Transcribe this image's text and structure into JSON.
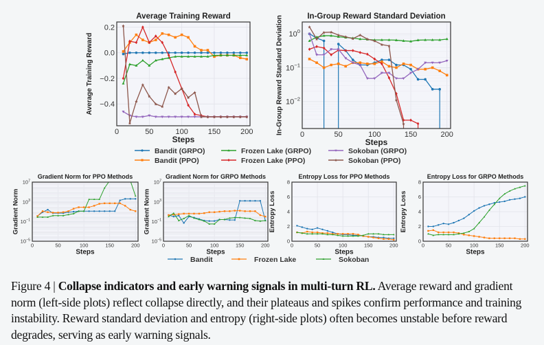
{
  "colors": {
    "blue": "#1f77b4",
    "orange": "#ff7f0e",
    "green": "#2ca02c",
    "red": "#d62728",
    "purple": "#9467bd",
    "brown": "#8c564b"
  },
  "legend_top": {
    "entries": [
      {
        "label": "Bandit (GRPO)",
        "color": "#1f77b4",
        "marker": "circle"
      },
      {
        "label": "Bandit (PPO)",
        "color": "#ff7f0e",
        "marker": "square"
      },
      {
        "label": "Frozen Lake (GRPO)",
        "color": "#2ca02c",
        "marker": "triangle-up"
      },
      {
        "label": "Frozen Lake (PPO)",
        "color": "#d62728",
        "marker": "diamond"
      },
      {
        "label": "Sokoban (GRPO)",
        "color": "#9467bd",
        "marker": "triangle-down"
      },
      {
        "label": "Sokoban (PPO)",
        "color": "#8c564b",
        "marker": "star"
      }
    ]
  },
  "legend_bottom": {
    "entries": [
      {
        "label": "Bandit",
        "color": "#1f77b4",
        "marker": "circle"
      },
      {
        "label": "Frozen Lake",
        "color": "#ff7f0e",
        "marker": "square"
      },
      {
        "label": "Sokoban",
        "color": "#2ca02c",
        "marker": "triangle-up"
      }
    ]
  },
  "chart_data": [
    {
      "id": "avg-reward",
      "type": "line",
      "title": "Average Training Reward",
      "xlabel": "Steps",
      "ylabel": "Average Training Reward",
      "xlim": [
        0,
        205
      ],
      "ylim": [
        -0.57,
        0.24
      ],
      "yscale": "linear",
      "xticks": [
        0,
        50,
        100,
        150,
        200
      ],
      "yticks": [
        0.2,
        0.0,
        -0.2,
        -0.4
      ],
      "ytick_labels": [
        "0.2",
        "0.0",
        "−0.2",
        "−0.4"
      ],
      "grid": true,
      "x": [
        10,
        20,
        30,
        40,
        50,
        60,
        70,
        80,
        90,
        100,
        110,
        120,
        130,
        140,
        150,
        160,
        170,
        180,
        190,
        200
      ],
      "series": [
        {
          "name": "Bandit (GRPO)",
          "color": "#1f77b4",
          "values": [
            -0.01,
            0.0,
            0.0,
            0.0,
            0.0,
            0.0,
            0.0,
            0.0,
            0.0,
            0.0,
            0.0,
            0.0,
            0.0,
            0.0,
            0.0,
            0.0,
            0.0,
            0.0,
            0.0,
            0.0
          ]
        },
        {
          "name": "Bandit (PPO)",
          "color": "#ff7f0e",
          "values": [
            0.01,
            0.08,
            0.14,
            0.1,
            0.08,
            0.1,
            0.15,
            0.14,
            0.12,
            0.14,
            0.12,
            0.05,
            0.02,
            0.02,
            -0.03,
            -0.02,
            -0.02,
            -0.02,
            -0.04,
            -0.05
          ]
        },
        {
          "name": "Frozen Lake (GRPO)",
          "color": "#2ca02c",
          "values": [
            -0.24,
            -0.09,
            -0.1,
            -0.06,
            -0.1,
            -0.06,
            -0.05,
            -0.04,
            -0.03,
            -0.03,
            -0.03,
            -0.03,
            -0.03,
            -0.03,
            -0.02,
            -0.02,
            -0.02,
            -0.02,
            -0.02,
            -0.02
          ]
        },
        {
          "name": "Frozen Lake (PPO)",
          "color": "#d62728",
          "values": [
            -0.2,
            0.09,
            0.08,
            0.2,
            0.08,
            0.13,
            0.08,
            -0.02,
            -0.15,
            -0.28,
            -0.41,
            -0.48,
            -0.49,
            -0.5,
            -0.5,
            -0.5,
            -0.5,
            -0.5,
            -0.5,
            -0.5
          ]
        },
        {
          "name": "Sokoban (GRPO)",
          "color": "#9467bd",
          "values": [
            -0.46,
            -0.49,
            -0.5,
            -0.5,
            -0.49,
            -0.5,
            -0.5,
            -0.5,
            -0.5,
            -0.5,
            -0.5,
            -0.5,
            -0.5,
            -0.5,
            -0.5,
            -0.5,
            -0.5,
            -0.5,
            -0.5,
            -0.5
          ]
        },
        {
          "name": "Sokoban (PPO)",
          "color": "#8c564b",
          "values": [
            0.21,
            -0.55,
            -0.38,
            -0.25,
            -0.34,
            -0.4,
            -0.42,
            -0.27,
            -0.32,
            -0.28,
            -0.35,
            -0.31,
            -0.5,
            -0.5,
            -0.5,
            -0.5,
            -0.5,
            -0.5,
            -0.5,
            -0.5
          ]
        }
      ]
    },
    {
      "id": "reward-std",
      "type": "line",
      "title": "In-Group Reward Standard Deviation",
      "xlabel": "Steps",
      "ylabel": "In-Group Reward Standard Deviation",
      "xlim": [
        0,
        205
      ],
      "ylim_log10": [
        -2.8,
        0.35
      ],
      "yscale": "log",
      "xticks": [
        0,
        50,
        100,
        150,
        200
      ],
      "yticks_log10": [
        0,
        -1,
        -2
      ],
      "ytick_labels": [
        "10",
        "10",
        "10"
      ],
      "ytick_exponents": [
        "0",
        "−1",
        "−2"
      ],
      "grid": true,
      "x": [
        10,
        20,
        30,
        40,
        50,
        60,
        70,
        80,
        90,
        100,
        110,
        120,
        130,
        140,
        150,
        160,
        170,
        180,
        190,
        200
      ],
      "series": [
        {
          "name": "Bandit (GRPO)",
          "color": "#1f77b4",
          "values": [
            1.0,
            0.75,
            0.62,
            null,
            0.5,
            0.32,
            0.17,
            0.12,
            0.12,
            0.14,
            0.17,
            0.17,
            0.12,
            0.12,
            0.09,
            0.045,
            0.045,
            0.023,
            0.023,
            null
          ],
          "drops_at": [
            30,
            50,
            190
          ]
        },
        {
          "name": "Bandit (PPO)",
          "color": "#ff7f0e",
          "values": [
            0.18,
            0.14,
            0.1,
            0.12,
            0.13,
            0.11,
            0.14,
            0.14,
            0.13,
            0.13,
            0.15,
            0.11,
            0.1,
            0.13,
            0.12,
            0.09,
            0.09,
            0.1,
            0.08,
            0.06
          ]
        },
        {
          "name": "Frozen Lake (GRPO)",
          "color": "#2ca02c",
          "values": [
            0.62,
            0.8,
            0.88,
            0.88,
            0.82,
            0.78,
            0.75,
            0.7,
            0.68,
            0.66,
            0.66,
            0.66,
            0.65,
            0.62,
            0.6,
            0.65,
            0.66,
            0.66,
            0.66,
            0.7
          ]
        },
        {
          "name": "Frozen Lake (PPO)",
          "color": "#d62728",
          "values": [
            0.35,
            0.42,
            0.38,
            0.24,
            0.33,
            0.32,
            0.32,
            0.28,
            0.25,
            0.18,
            0.13,
            0.05,
            0.017,
            0.0028,
            0.0028,
            0.0022,
            null,
            null,
            null,
            null
          ],
          "drops_at": [
            160
          ]
        },
        {
          "name": "Sokoban (GRPO)",
          "color": "#9467bd",
          "values": [
            1.0,
            0.24,
            0.24,
            0.35,
            0.35,
            0.19,
            0.14,
            0.12,
            0.048,
            0.048,
            0.07,
            0.07,
            0.048,
            0.048,
            0.07,
            0.09,
            0.14,
            0.14,
            0.14,
            0.16
          ]
        },
        {
          "name": "Sokoban (PPO)",
          "color": "#8c564b",
          "values": [
            1.6,
            0.7,
            1.1,
            1.12,
            0.92,
            0.82,
            0.72,
            0.92,
            0.7,
            0.62,
            0.48,
            0.44,
            0.011,
            0.0022,
            null,
            null,
            null,
            null,
            null,
            null
          ],
          "drops_at": [
            140
          ]
        }
      ]
    },
    {
      "id": "grad-norm-ppo",
      "type": "line",
      "title": "Gradient Norm for PPO Methods",
      "xlabel": "Steps",
      "ylabel": "Gradient Norm",
      "xlim": [
        0,
        205
      ],
      "ylim_log10": [
        -5,
        7
      ],
      "yscale": "log",
      "xticks": [
        0,
        50,
        100,
        150,
        200
      ],
      "yticks_log10": [
        7,
        3,
        -1,
        -5
      ],
      "ytick_labels": [
        "10",
        "10",
        "10",
        "10"
      ],
      "ytick_exponents": [
        "7",
        "3",
        "−1",
        "−5"
      ],
      "grid": true,
      "x": [
        10,
        20,
        30,
        40,
        50,
        60,
        70,
        80,
        90,
        100,
        110,
        120,
        130,
        140,
        150,
        160,
        170,
        180,
        190,
        200
      ],
      "series": [
        {
          "name": "Bandit",
          "color": "#1f77b4",
          "log10_values": [
            0.1,
            0.9,
            1.4,
            0.7,
            0.7,
            0.7,
            0.9,
            1.0,
            1.1,
            1.1,
            1.1,
            1.1,
            1.1,
            1.1,
            1.1,
            1.1,
            3.3,
            3.6,
            3.6,
            3.6
          ]
        },
        {
          "name": "Frozen Lake",
          "color": "#ff7f0e",
          "log10_values": [
            0.1,
            1.1,
            0.9,
            0.8,
            0.8,
            0.9,
            1.1,
            1.6,
            1.9,
            1.9,
            1.9,
            2.2,
            2.6,
            2.7,
            2.7,
            2.7,
            2.7,
            2.2,
            1.4,
            1.1
          ]
        },
        {
          "name": "Sokoban",
          "color": "#2ca02c",
          "log10_values": [
            -0.1,
            -0.1,
            -0.1,
            0.2,
            0.2,
            0.2,
            0.4,
            0.6,
            1.1,
            1.1,
            3.5,
            3.5,
            3.5,
            5.8,
            7.3,
            7.3,
            7.3,
            7.3,
            7.3,
            4.2
          ]
        }
      ]
    },
    {
      "id": "grad-norm-grpo",
      "type": "line",
      "title": "Gradient Norm for GRPO Methods",
      "xlabel": "Steps",
      "ylabel": "Gradient Norm",
      "xlim": [
        0,
        205
      ],
      "ylim_log10": [
        -5,
        7
      ],
      "yscale": "log",
      "xticks": [
        0,
        50,
        100,
        150,
        200
      ],
      "yticks_log10": [
        7,
        3,
        -1,
        -5
      ],
      "ytick_labels": [
        "10",
        "10",
        "10",
        "10"
      ],
      "ytick_exponents": [
        "7",
        "3",
        "−1",
        "−5"
      ],
      "grid": true,
      "x": [
        10,
        20,
        30,
        40,
        50,
        60,
        70,
        80,
        90,
        100,
        110,
        120,
        130,
        140,
        150,
        160,
        170,
        180,
        190,
        200
      ],
      "series": [
        {
          "name": "Bandit",
          "color": "#1f77b4",
          "log10_values": [
            0.3,
            0.0,
            0.2,
            -1.3,
            0.0,
            -0.2,
            -0.5,
            -0.8,
            -0.9,
            -0.9,
            -0.6,
            -0.6,
            -0.7,
            -0.7,
            3.2,
            3.2,
            3.2,
            3.2,
            3.2,
            -0.8
          ]
        },
        {
          "name": "Frozen Lake",
          "color": "#ff7f0e",
          "log10_values": [
            0.3,
            0.4,
            0.5,
            0.6,
            0.6,
            0.6,
            0.6,
            0.7,
            0.9,
            0.9,
            1.0,
            1.1,
            1.1,
            1.2,
            1.2,
            1.1,
            1.1,
            1.1,
            0.3,
            0.0
          ]
        },
        {
          "name": "Sokoban",
          "color": "#2ca02c",
          "log10_values": [
            0.0,
            0.7,
            -0.8,
            -0.4,
            0.2,
            -0.3,
            -0.6,
            -0.9,
            -1.5,
            -1.5,
            -0.6,
            -0.6,
            -0.3,
            -0.2,
            -0.2,
            -0.3,
            -0.4,
            -0.8,
            -0.9,
            -0.8
          ]
        }
      ]
    },
    {
      "id": "entropy-ppo",
      "type": "line",
      "title": "Entropy Loss for PPO Methods",
      "xlabel": "Steps",
      "ylabel": "Entropy Loss",
      "xlim": [
        0,
        205
      ],
      "ylim": [
        0,
        8
      ],
      "yscale": "linear",
      "xticks": [
        0,
        50,
        100,
        150,
        200
      ],
      "yticks": [
        0,
        2,
        4,
        6,
        8
      ],
      "grid": true,
      "x": [
        10,
        20,
        30,
        40,
        50,
        60,
        70,
        80,
        90,
        100,
        110,
        120,
        130,
        140,
        150,
        160,
        170,
        180,
        190,
        200
      ],
      "series": [
        {
          "name": "Bandit",
          "color": "#1f77b4",
          "values": [
            2.1,
            1.9,
            1.7,
            1.6,
            1.8,
            1.6,
            1.4,
            1.2,
            1.0,
            0.9,
            0.9,
            0.8,
            0.8,
            0.7,
            0.6,
            0.6,
            0.5,
            0.5,
            0.4,
            0.4
          ]
        },
        {
          "name": "Frozen Lake",
          "color": "#ff7f0e",
          "values": [
            1.2,
            1.1,
            1.3,
            1.2,
            1.2,
            1.1,
            1.1,
            1.0,
            1.0,
            1.0,
            1.0,
            1.0,
            0.9,
            0.7,
            0.6,
            0.5,
            0.4,
            0.3,
            0.3,
            0.2
          ]
        },
        {
          "name": "Sokoban",
          "color": "#2ca02c",
          "values": [
            1.2,
            1.1,
            1.0,
            1.0,
            1.0,
            1.0,
            0.9,
            0.9,
            0.8,
            0.7,
            0.7,
            0.7,
            0.7,
            0.8,
            1.0,
            1.0,
            1.0,
            0.9,
            0.9,
            0.9
          ]
        }
      ]
    },
    {
      "id": "entropy-grpo",
      "type": "line",
      "title": "Entropy Loss for GRPO Methods",
      "xlabel": "Steps",
      "ylabel": "Entropy Loss",
      "xlim": [
        0,
        205
      ],
      "ylim": [
        0,
        8
      ],
      "yscale": "linear",
      "xticks": [
        0,
        50,
        100,
        150,
        200
      ],
      "yticks": [
        0,
        2,
        4,
        6,
        8
      ],
      "grid": true,
      "x": [
        10,
        20,
        30,
        40,
        50,
        60,
        70,
        80,
        90,
        100,
        110,
        120,
        130,
        140,
        150,
        160,
        170,
        180,
        190,
        200
      ],
      "series": [
        {
          "name": "Bandit",
          "color": "#1f77b4",
          "values": [
            2.0,
            2.0,
            2.2,
            2.4,
            2.3,
            2.5,
            2.8,
            3.1,
            3.6,
            4.1,
            4.5,
            4.8,
            5.0,
            5.2,
            5.3,
            5.4,
            5.6,
            5.7,
            5.8,
            6.0
          ]
        },
        {
          "name": "Frozen Lake",
          "color": "#ff7f0e",
          "values": [
            1.4,
            1.5,
            1.2,
            1.2,
            1.2,
            1.2,
            1.1,
            0.9,
            0.8,
            0.7,
            0.6,
            0.5,
            0.4,
            0.4,
            0.4,
            0.4,
            0.4,
            0.4,
            0.3,
            0.3
          ]
        },
        {
          "name": "Sokoban",
          "color": "#2ca02c",
          "values": [
            1.0,
            0.8,
            0.9,
            0.9,
            0.9,
            0.9,
            1.0,
            1.1,
            1.3,
            1.7,
            2.5,
            3.3,
            4.2,
            5.0,
            5.8,
            6.4,
            6.8,
            7.1,
            7.3,
            7.5
          ]
        }
      ]
    }
  ],
  "caption": {
    "label": "Figure 4 | ",
    "bold": "Collapse indicators and early warning signals in multi-turn RL.",
    "text": " Average reward and gradient norm (left-side plots) reflect collapse directly, and their plateaus and spikes confirm performance and training instability. Reward standard deviation and entropy (right-side plots) often becomes unstable before reward degrades, serving as early warning signals."
  }
}
